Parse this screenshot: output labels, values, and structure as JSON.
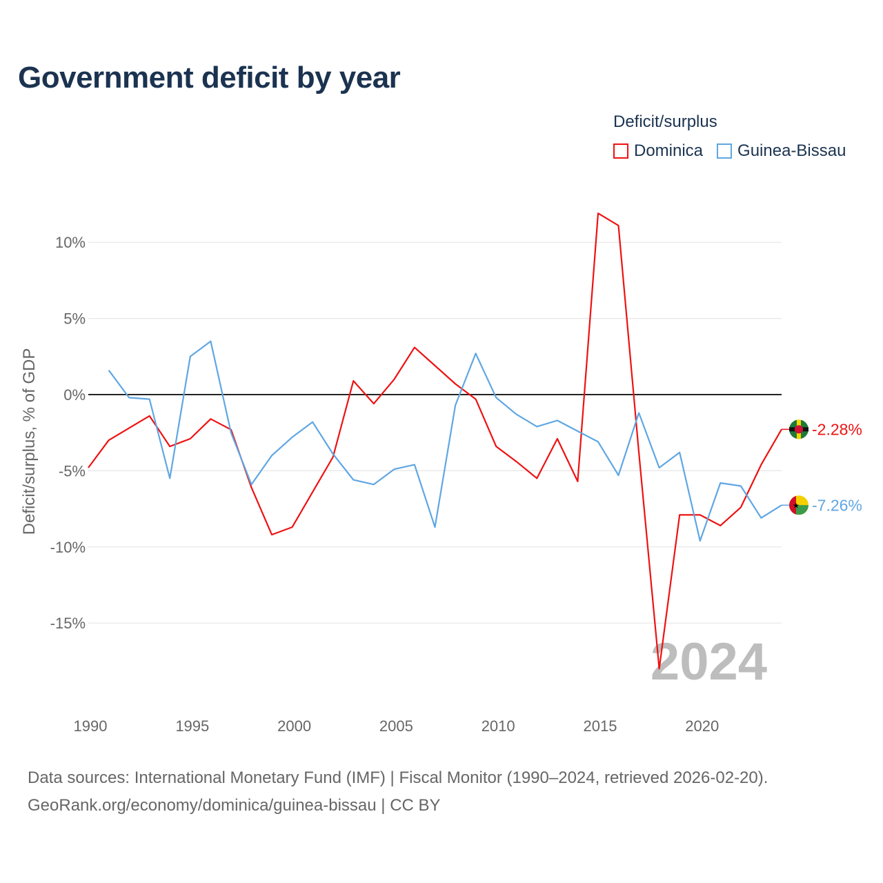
{
  "title": "Government deficit by year",
  "legend": {
    "title": "Deficit/surplus",
    "items": [
      {
        "name": "Dominica",
        "color": "#ee1111"
      },
      {
        "name": "Guinea-Bissau",
        "color": "#5fa6e3"
      }
    ]
  },
  "year_watermark": "2024",
  "footer": {
    "line1": "Data sources: International Monetary Fund (IMF) | Fiscal Monitor (1990–2024, retrieved 2026-02-20).",
    "line2": "GeoRank.org/economy/dominica/guinea-bissau | CC BY"
  },
  "chart_data": {
    "type": "line",
    "title": "Government deficit by year",
    "xlabel": "",
    "ylabel": "Deficit/surplus, % of GDP",
    "xlim": [
      1990,
      2024
    ],
    "ylim": [
      -20,
      12
    ],
    "x_ticks": [
      1990,
      1995,
      2000,
      2005,
      2010,
      2015,
      2020
    ],
    "y_ticks": [
      {
        "value": 10,
        "label": "10%"
      },
      {
        "value": 5,
        "label": "5%"
      },
      {
        "value": 0,
        "label": "0%"
      },
      {
        "value": -5,
        "label": "-5%"
      },
      {
        "value": -10,
        "label": "-10%"
      },
      {
        "value": -15,
        "label": "-15%"
      }
    ],
    "series": [
      {
        "name": "Dominica",
        "color": "#ee1111",
        "x": [
          1990,
          1991,
          1992,
          1993,
          1994,
          1995,
          1996,
          1997,
          1998,
          1999,
          2000,
          2001,
          2002,
          2003,
          2004,
          2005,
          2006,
          2007,
          2008,
          2009,
          2010,
          2011,
          2012,
          2013,
          2014,
          2015,
          2016,
          2017,
          2018,
          2019,
          2020,
          2021,
          2022,
          2023,
          2024
        ],
        "values": [
          -4.8,
          -3.0,
          -2.2,
          -1.4,
          -3.4,
          -2.9,
          -1.6,
          -2.3,
          -6.1,
          -9.2,
          -8.7,
          -6.4,
          -4.1,
          0.9,
          -0.6,
          1.0,
          3.1,
          1.9,
          0.7,
          -0.3,
          -3.4,
          -4.4,
          -5.5,
          -2.9,
          -5.7,
          11.9,
          11.1,
          -3.8,
          -18.0,
          -7.9,
          -7.9,
          -8.6,
          -7.4,
          -4.6,
          -2.28
        ],
        "end_label": "-2.28%"
      },
      {
        "name": "Guinea-Bissau",
        "color": "#5fa6e3",
        "x": [
          1991,
          1992,
          1993,
          1994,
          1995,
          1996,
          1997,
          1998,
          1999,
          2000,
          2001,
          2002,
          2003,
          2004,
          2005,
          2006,
          2007,
          2008,
          2009,
          2010,
          2011,
          2012,
          2013,
          2014,
          2015,
          2016,
          2017,
          2018,
          2019,
          2020,
          2021,
          2022,
          2023,
          2024
        ],
        "values": [
          1.6,
          -0.2,
          -0.3,
          -5.5,
          2.5,
          3.5,
          -2.5,
          -5.9,
          -4.0,
          -2.8,
          -1.8,
          -3.9,
          -5.6,
          -5.9,
          -4.9,
          -4.6,
          -8.7,
          -0.7,
          2.7,
          -0.2,
          -1.3,
          -2.1,
          -1.7,
          -2.4,
          -3.1,
          -5.3,
          -1.2,
          -4.8,
          -3.8,
          -9.6,
          -5.8,
          -6.0,
          -8.1,
          -7.26
        ],
        "end_label": "-7.26%"
      }
    ]
  }
}
